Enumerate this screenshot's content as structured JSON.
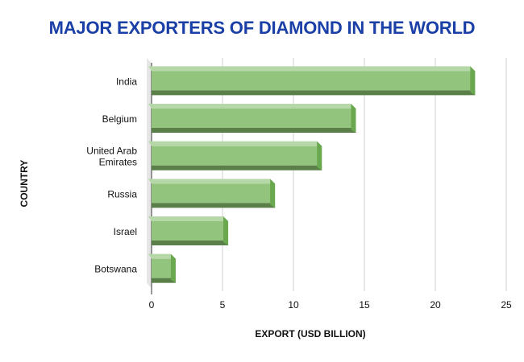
{
  "chart_data": {
    "type": "bar",
    "orientation": "horizontal",
    "title": "MAJOR EXPORTERS OF DIAMOND IN THE WORLD",
    "xlabel": "EXPORT (USD BILLION)",
    "ylabel": "COUNTRY",
    "categories": [
      "India",
      "Belgium",
      "United Arab Emirates",
      "Russia",
      "Israel",
      "Botswana"
    ],
    "category_lines": [
      [
        "India"
      ],
      [
        "Belgium"
      ],
      [
        "United Arab",
        "Emirates"
      ],
      [
        "Russia"
      ],
      [
        "Israel"
      ],
      [
        "Botswana"
      ]
    ],
    "values": [
      22.8,
      14.4,
      12.0,
      8.7,
      5.4,
      1.7
    ],
    "xlim": [
      0,
      25
    ],
    "xticks": [
      0,
      5,
      10,
      15,
      20,
      25
    ],
    "grid": true,
    "legend": "none",
    "colors": {
      "bar_face": "#93c47d",
      "bar_top": "#b6d7a8",
      "bar_side": "#6aa84f",
      "bar_bottom": "#5b7f48",
      "title": "#1a3fa6"
    }
  }
}
